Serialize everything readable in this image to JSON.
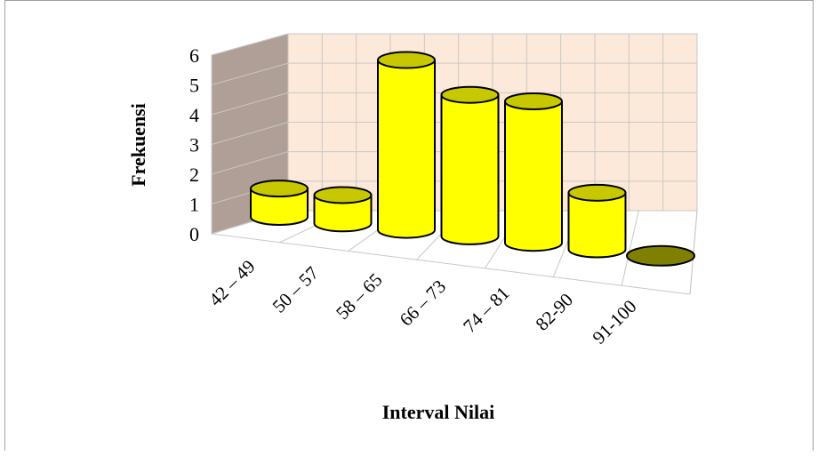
{
  "chart_data": {
    "type": "bar",
    "style": "3d-cylinder",
    "categories": [
      "42 – 49",
      "50 – 57",
      "58 – 65",
      "66 – 73",
      "74 – 81",
      "82-90",
      "91-100"
    ],
    "values": [
      1,
      1,
      6,
      5,
      5,
      2,
      0
    ],
    "xlabel": "Interval Nilai",
    "ylabel": "Frekuensi",
    "ylim": [
      0,
      6
    ],
    "yticks": [
      "0",
      "1",
      "2",
      "3",
      "4",
      "5",
      "6"
    ],
    "grid": true,
    "legend": "none",
    "colors": {
      "bar_fill": "#ffff00",
      "bar_side": "#e6e600",
      "bar_top": "#c8c800",
      "bar_empty_top": "#808000",
      "back_wall": "#fde9d9",
      "side_wall": "#b09f96",
      "grid": "#c8c8c8"
    }
  }
}
